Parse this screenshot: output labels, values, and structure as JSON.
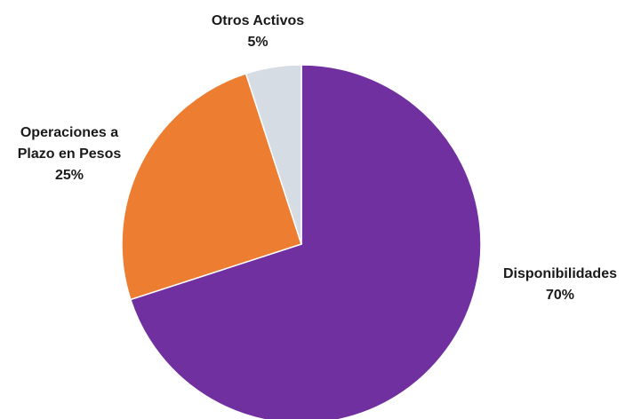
{
  "chart_data": {
    "type": "pie",
    "title": "",
    "slices": [
      {
        "label_lines": [
          "Disponibilidades"
        ],
        "pct_label": "70%",
        "value": 70,
        "color": "#7030a0"
      },
      {
        "label_lines": [
          "Operaciones a",
          "Plazo en Pesos"
        ],
        "pct_label": "25%",
        "value": 25,
        "color": "#ed7d31"
      },
      {
        "label_lines": [
          "Otros Activos"
        ],
        "pct_label": "5%",
        "value": 5,
        "color": "#d6dce4"
      }
    ]
  }
}
